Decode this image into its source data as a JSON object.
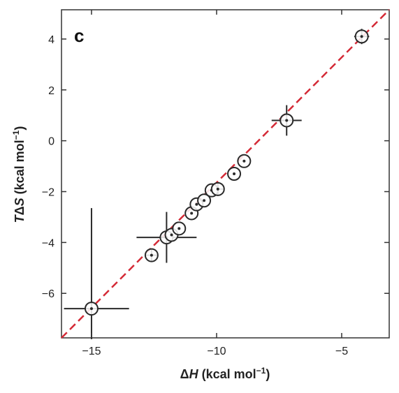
{
  "chart_data": {
    "type": "scatter",
    "panel_label": "c",
    "xlabel_parts": [
      "Δ",
      "H",
      " (kcal mol",
      "−1",
      ")"
    ],
    "ylabel_parts": [
      "T",
      "Δ",
      "S",
      " (kcal mol",
      "−1",
      ")"
    ],
    "xlim": [
      -16.2,
      -3.1
    ],
    "ylim": [
      -7.75,
      5.15
    ],
    "xticks": [
      -15,
      -10,
      -5
    ],
    "yticks": [
      -6,
      -4,
      -2,
      0,
      2,
      4
    ],
    "xtick_labels": [
      "−15",
      "−10",
      "−5"
    ],
    "ytick_labels": [
      "−6",
      "−4",
      "−2",
      "0",
      "2",
      "4"
    ],
    "diagonal_line": {
      "x": [
        -16.2,
        -3.1
      ],
      "y": [
        -7.75,
        5.15
      ],
      "color": "#d42a36",
      "style": "dashed"
    },
    "points": [
      {
        "x": -15.0,
        "y": -6.6,
        "xerr": 1.5,
        "xerr_low": 1.1,
        "yerr_low": 1.2,
        "yerr_high": 3.95
      },
      {
        "x": -12.6,
        "y": -4.5,
        "xerr": 0.25,
        "yerr": 0.25
      },
      {
        "x": -12.0,
        "y": -3.8,
        "xerr": 1.2,
        "yerr": 1.0
      },
      {
        "x": -11.8,
        "y": -3.7,
        "xerr": 0.0,
        "yerr": 0.0
      },
      {
        "x": -11.5,
        "y": -3.45,
        "xerr": 0.0,
        "yerr": 0.0
      },
      {
        "x": -11.0,
        "y": -2.85,
        "xerr": 0.0,
        "yerr": 0.0
      },
      {
        "x": -10.8,
        "y": -2.5,
        "xerr": 0.0,
        "yerr": 0.0
      },
      {
        "x": -10.5,
        "y": -2.35,
        "xerr": 0.0,
        "yerr": 0.0
      },
      {
        "x": -10.2,
        "y": -1.95,
        "xerr": 0.0,
        "yerr": 0.0
      },
      {
        "x": -9.95,
        "y": -1.9,
        "xerr": 0.25,
        "yerr": 0.25
      },
      {
        "x": -9.3,
        "y": -1.3,
        "xerr": 0.0,
        "yerr": 0.0
      },
      {
        "x": -8.9,
        "y": -0.8,
        "xerr": 0.0,
        "yerr": 0.0
      },
      {
        "x": -7.2,
        "y": 0.8,
        "xerr": 0.6,
        "yerr": 0.6
      },
      {
        "x": -4.2,
        "y": 4.1,
        "xerr": 0.3,
        "yerr": 0.3
      }
    ]
  }
}
